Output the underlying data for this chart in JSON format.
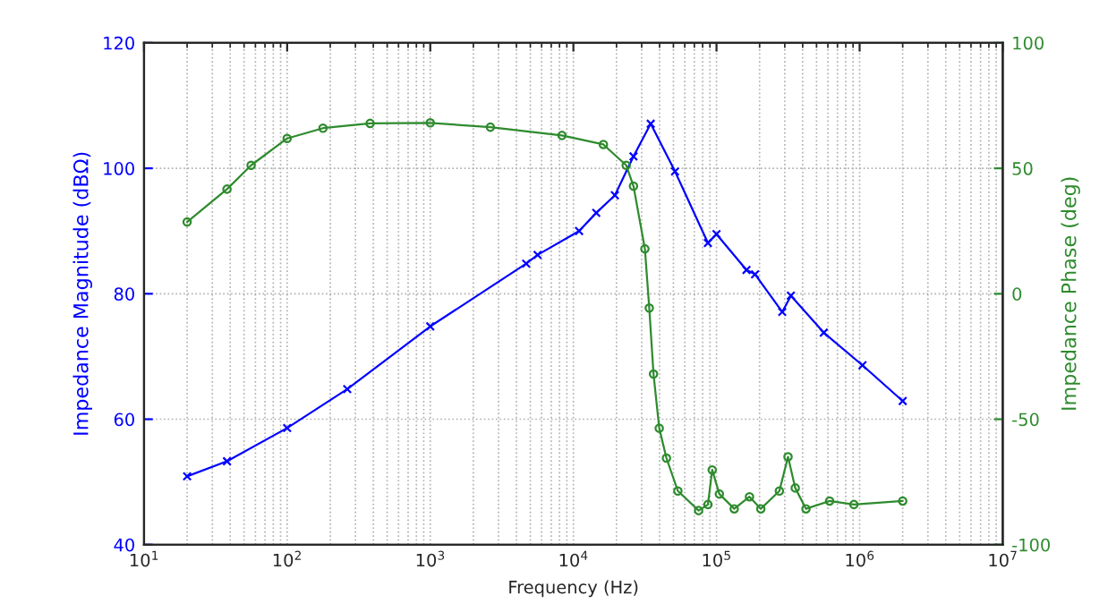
{
  "chart_data": {
    "type": "line",
    "xlabel": "Frequency (Hz)",
    "ylabel": "Impedance Magnitude (dBΩ)",
    "y2label": "Impedance Phase (deg)",
    "log": "x",
    "grid": true,
    "legend": false,
    "line_style": "solid",
    "xlim": [
      10,
      10000000
    ],
    "xticks": [
      {
        "value": 10,
        "label": "10$^{1}$"
      },
      {
        "value": 100,
        "label": "10$^{2}$"
      },
      {
        "value": 1000,
        "label": "10$^{3}$"
      },
      {
        "value": 10000,
        "label": "10$^{4}$"
      },
      {
        "value": 100000,
        "label": "10$^{5}$"
      },
      {
        "value": 1000000,
        "label": "10$^{6}$"
      },
      {
        "value": 10000000,
        "label": "10$^{7}$"
      }
    ],
    "ylim": [
      40,
      120
    ],
    "yticks": [
      40,
      60,
      80,
      100,
      120
    ],
    "y2lim": [
      -100,
      100
    ],
    "y2ticks": [
      -100,
      -50,
      0,
      50,
      100
    ],
    "series": [
      {
        "color": "#0000ff",
        "marker": "cross",
        "x": [
          20,
          38,
          100,
          263,
          1000,
          4680,
          5620,
          10960,
          14450,
          19500,
          26300,
          34700,
          51300,
          87100,
          100000,
          162000,
          186000,
          288000,
          331000,
          562000,
          1047000,
          2000000
        ],
        "values": [
          50.9,
          53.3,
          58.6,
          64.8,
          74.8,
          84.8,
          86.2,
          90.0,
          92.9,
          95.7,
          101.9,
          107.1,
          99.5,
          88.1,
          89.5,
          83.8,
          83.1,
          77.1,
          79.7,
          73.8,
          68.6,
          62.9
        ]
      },
      {
        "color": "#2e8b2e",
        "marker": "circle",
        "axis": "y2",
        "x": [
          20,
          38,
          56,
          100,
          178,
          380,
          1000,
          2630,
          8320,
          16200,
          23400,
          26300,
          31600,
          33900,
          36300,
          39800,
          44700,
          53700,
          75000,
          87100,
          93300,
          104700,
          133000,
          170000,
          204000,
          275000,
          316000,
          355000,
          422000,
          617000,
          912000,
          2000000
        ],
        "values": [
          28.6,
          41.7,
          51.2,
          61.9,
          66.0,
          67.9,
          68.1,
          66.4,
          63.1,
          59.5,
          51.2,
          42.9,
          17.9,
          -5.7,
          -32.0,
          -53.6,
          -65.5,
          -78.6,
          -86.4,
          -84.0,
          -70.2,
          -79.8,
          -85.7,
          -80.9,
          -85.7,
          -78.6,
          -65.0,
          -77.4,
          -85.7,
          -82.6,
          -84.0,
          -82.6
        ]
      }
    ]
  }
}
